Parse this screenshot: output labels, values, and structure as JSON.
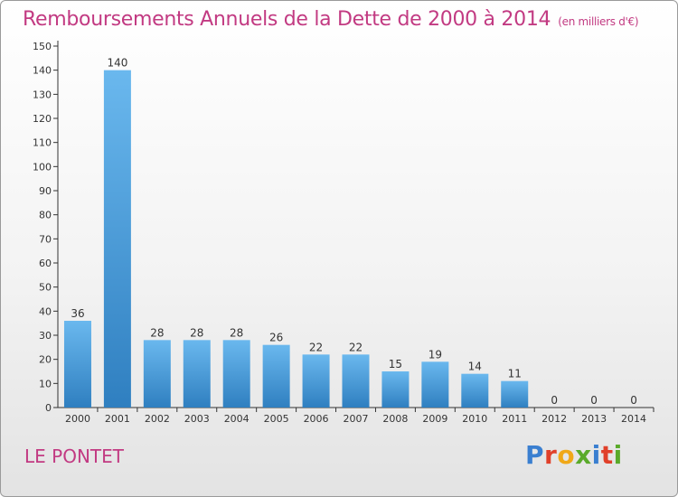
{
  "title": "Remboursements Annuels de la Dette de 2000 à 2014",
  "unit_note": "(en milliers d'€)",
  "town": "LE PONTET",
  "logo": {
    "letters": [
      "P",
      "r",
      "o",
      "x",
      "i",
      "t",
      "i"
    ],
    "colors": [
      "#3a7fd0",
      "#e0402a",
      "#f0a818",
      "#5aaa2a",
      "#3a7fd0",
      "#e0402a",
      "#5aaa2a"
    ]
  },
  "colors": {
    "title": "#c23a82",
    "bar_light": "#6ab8ee",
    "bar_dark": "#2f7fc0",
    "axis": "#333333",
    "grid": "#d8d8d8"
  },
  "chart_data": {
    "type": "bar",
    "categories": [
      "2000",
      "2001",
      "2002",
      "2003",
      "2004",
      "2005",
      "2006",
      "2007",
      "2008",
      "2009",
      "2010",
      "2011",
      "2012",
      "2013",
      "2014"
    ],
    "values": [
      36,
      140,
      28,
      28,
      28,
      26,
      22,
      22,
      15,
      19,
      14,
      11,
      0,
      0,
      0
    ],
    "yticks": [
      0,
      10,
      20,
      30,
      40,
      50,
      60,
      70,
      80,
      90,
      100,
      110,
      120,
      130,
      140,
      150
    ],
    "ylim": [
      0,
      150
    ],
    "grid": false,
    "data_labels": true
  }
}
